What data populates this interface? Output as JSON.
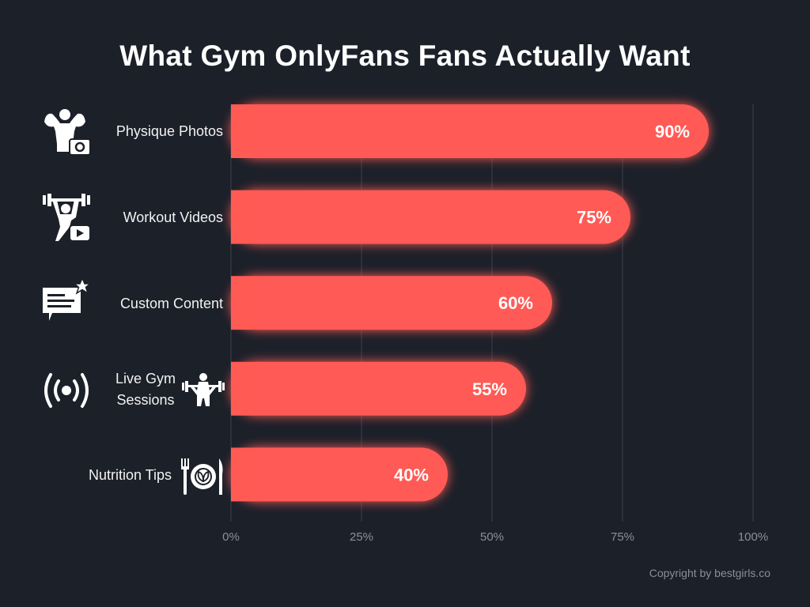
{
  "chart_data": {
    "type": "bar",
    "orientation": "horizontal",
    "title": "What Gym OnlyFans Fans Actually Want",
    "categories": [
      "Physique Photos",
      "Workout Videos",
      "Custom Content",
      "Live Gym Sessions",
      "Nutrition Tips"
    ],
    "category_lines": [
      [
        "Physique Photos"
      ],
      [
        "Workout Videos"
      ],
      [
        "Custom Content"
      ],
      [
        "Live Gym",
        "Sessions"
      ],
      [
        "Nutrition Tips"
      ]
    ],
    "values": [
      90,
      75,
      60,
      55,
      40
    ],
    "data_labels": [
      "90%",
      "75%",
      "60%",
      "55%",
      "40%"
    ],
    "xlim": [
      0,
      100
    ],
    "xticks": [
      0,
      25,
      50,
      75,
      100
    ],
    "xtick_labels": [
      "0%",
      "25%",
      "50%",
      "75%",
      "100%"
    ],
    "xlabel": "",
    "ylabel": "",
    "grid": "vertical",
    "bar_color": "#ff5a54",
    "icons": [
      "bodybuilder-camera-icon",
      "weightlifter-video-icon",
      "chat-star-icon",
      "broadcast-icon",
      "plate-leaf-icon"
    ]
  },
  "footer": {
    "copyright": "Copyright by bestgirls.co"
  }
}
